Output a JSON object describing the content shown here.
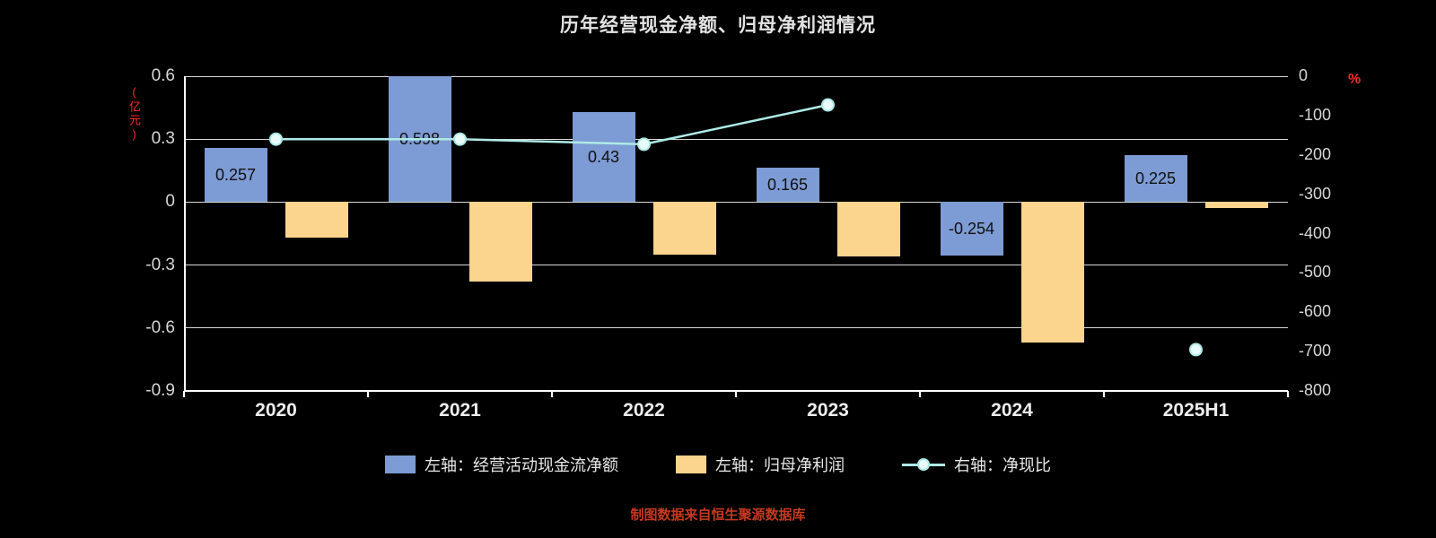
{
  "title": "历年经营现金净额、归母净利润情况",
  "footer": "制图数据来自恒生聚源数据库",
  "colors": {
    "background": "#000000",
    "bar_blue": "#7d9bd4",
    "bar_yellow": "#fbd48e",
    "line_cyan": "#aeeae6",
    "marker_fill": "#eafcfa",
    "axis_unit_red": "#ff2a2a",
    "footer_red": "#c43a20",
    "gridline": "#ffffff"
  },
  "chart_data": {
    "type": "bar+line combo",
    "categories": [
      "2020",
      "2021",
      "2022",
      "2023",
      "2024",
      "2025H1"
    ],
    "left_axis": {
      "unit": "(亿元)",
      "min": -0.9,
      "max": 0.6,
      "ticks": [
        0.6,
        0.3,
        0,
        -0.3,
        -0.6,
        -0.9
      ]
    },
    "right_axis": {
      "unit": "%",
      "min": -800,
      "max": 0,
      "ticks": [
        0,
        -100,
        -200,
        -300,
        -400,
        -500,
        -600,
        -700,
        -800
      ]
    },
    "series": [
      {
        "name": "左轴：经营活动现金流净额",
        "type": "bar",
        "axis": "left",
        "color": "#7d9bd4",
        "values": [
          0.257,
          0.598,
          0.43,
          0.165,
          -0.254,
          0.225
        ],
        "labels": [
          "0.257",
          "0.598",
          "0.43",
          "0.165",
          "-0.254",
          "0.225"
        ]
      },
      {
        "name": "左轴：归母净利润",
        "type": "bar",
        "axis": "left",
        "color": "#fbd48e",
        "values": [
          -0.17,
          -0.38,
          -0.25,
          -0.26,
          -0.67,
          -0.03
        ]
      },
      {
        "name": "右轴：净现比",
        "type": "line",
        "axis": "right",
        "color": "#aeeae6",
        "marker_fill": "#eafcfa",
        "values": [
          -160,
          -160,
          -173,
          -73,
          null,
          -695
        ]
      }
    ],
    "grid": true,
    "legend_position": "bottom"
  }
}
